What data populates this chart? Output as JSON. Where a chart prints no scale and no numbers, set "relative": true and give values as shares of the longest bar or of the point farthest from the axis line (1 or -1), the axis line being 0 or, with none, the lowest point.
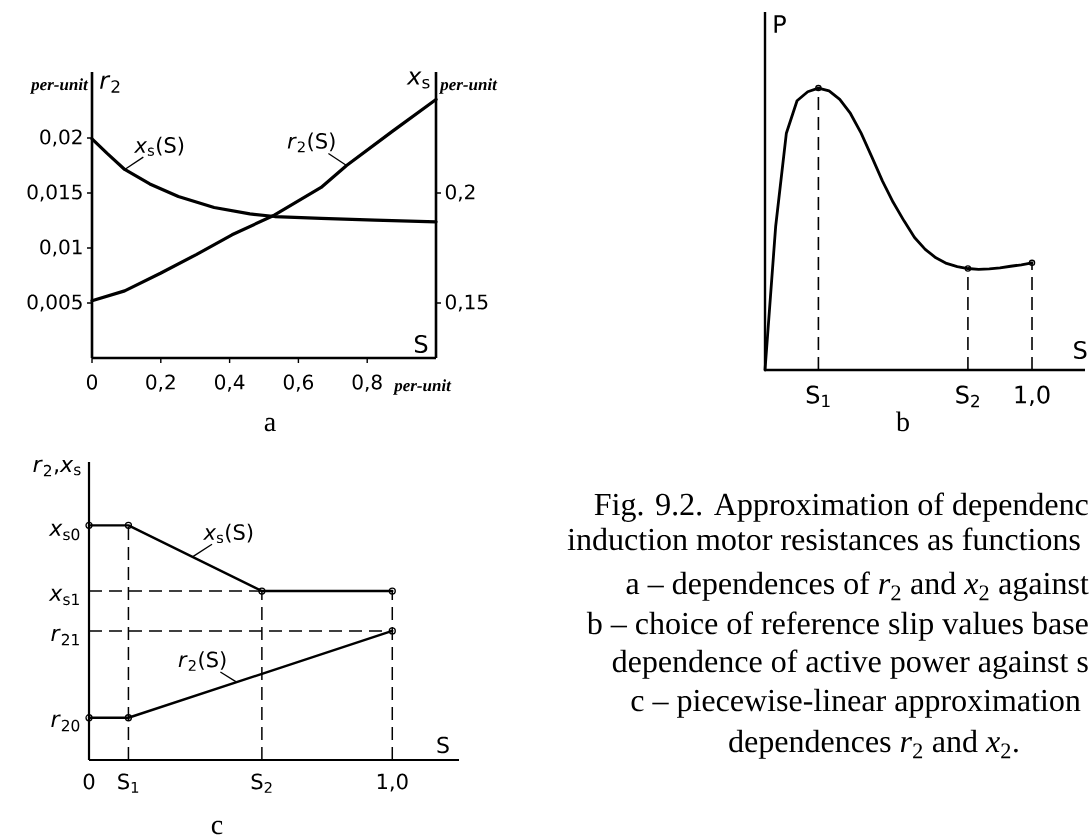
{
  "chart_data": [
    {
      "type": "line",
      "title": "a",
      "xlabel": "S",
      "ylabel": "*r*$_{2}$",
      "y2label": "*x*$_{s}$",
      "annotations": [
        "per-unit",
        "per-unit",
        "per-unit"
      ],
      "xlim": [
        0,
        1
      ],
      "xticks": [
        0,
        {
          "value": 0.2,
          "label": "0,2"
        },
        {
          "value": 0.4,
          "label": "0,4"
        },
        {
          "value": 0.6,
          "label": "0,6"
        },
        {
          "value": 0.8,
          "label": "0,8"
        }
      ],
      "ylim": [
        0,
        0.026
      ],
      "yticks": [
        {
          "value": 0.005,
          "label": "0,005"
        },
        {
          "value": 0.01,
          "label": "0,01"
        },
        {
          "value": 0.015,
          "label": "0,015"
        },
        {
          "value": 0.02,
          "label": "0,02"
        }
      ],
      "y2lim": [
        0.125,
        0.255
      ],
      "y2ticks": [
        {
          "value": 0.15,
          "label": "0,15"
        },
        {
          "value": 0.2,
          "label": "0,2"
        }
      ],
      "series": [
        {
          "name": "*x*$_{s}$(S)",
          "color": "#000000",
          "axis": "y2",
          "x": [
            0,
            0.044,
            0.095,
            0.168,
            0.251,
            0.355,
            0.459,
            0.531,
            0.666,
            0.822,
            1.0
          ],
          "values": [
            0.2246,
            0.218,
            0.2107,
            0.2041,
            0.1984,
            0.1934,
            0.1905,
            0.1893,
            0.1885,
            0.1877,
            0.1869
          ]
        },
        {
          "name": "*r*$_{2}$(S)",
          "color": "#000000",
          "x": [
            0,
            0.095,
            0.199,
            0.303,
            0.407,
            0.531,
            0.666,
            0.74,
            0.873,
            1.0
          ],
          "values": [
            0.0052,
            0.0061,
            0.0077,
            0.0094,
            0.0112,
            0.013,
            0.0155,
            0.0175,
            0.0206,
            0.0235
          ]
        }
      ]
    },
    {
      "type": "line",
      "title": "b",
      "xlabel": "S",
      "ylabel": "P",
      "relative": true,
      "categories": [
        null,
        null,
        null,
        null,
        null,
        "S$_{1}$",
        null,
        null,
        null,
        null,
        null,
        null,
        null,
        null,
        null,
        null,
        null,
        null,
        null,
        "S$_{2}$",
        null,
        null,
        null,
        null,
        null,
        "1,0"
      ],
      "series": [
        {
          "color": "#000000",
          "values": [
            0,
            0.51,
            0.84,
            0.955,
            0.987,
            1,
            0.99,
            0.96,
            0.91,
            0.84,
            0.756,
            0.67,
            0.595,
            0.53,
            0.47,
            0.428,
            0.398,
            0.378,
            0.367,
            0.36,
            0.357,
            0.359,
            0.362,
            0.368,
            0.373,
            0.38
          ]
        },
        {
          "type": "lollipop",
          "color": "#000000",
          "line_style": "dashed",
          "values": [
            null,
            null,
            null,
            null,
            null,
            1,
            null,
            null,
            null,
            null,
            null,
            null,
            null,
            null,
            null,
            null,
            null,
            null,
            null,
            0.36,
            null,
            null,
            null,
            null,
            null,
            0.38
          ]
        }
      ]
    },
    {
      "type": "line",
      "title": "c",
      "xlabel": "S",
      "ylabel": "*r*$_{2}$,*x*$_{s}$",
      "relative": true,
      "marker": "circle",
      "xlim": [
        0,
        1.22
      ],
      "xticks": [
        0,
        {
          "value": 1,
          "label": "1,0"
        }
      ],
      "ref_lines": [
        {
          "axis": "x",
          "value": 0.13,
          "label": "S$_{1}$",
          "line_style": "dashed"
        },
        {
          "axis": "x",
          "value": 0.57,
          "label": "S$_{2}$",
          "line_style": "dashed"
        },
        {
          "axis": "x",
          "value": 1,
          "line_style": "dashed"
        },
        {
          "axis": "y",
          "value": 0.72,
          "line_style": "dashed"
        },
        {
          "axis": "y",
          "value": 0.55,
          "line_style": "dashed"
        }
      ],
      "annotations": [
        "*x*$_{s0}$",
        "*x*$_{s1}$",
        "*r*$_{21}$",
        "*r*$_{20}$"
      ],
      "series": [
        {
          "name": "*x*$_{s}$(S)",
          "color": "#000000",
          "x": [
            0,
            0.13,
            0.57,
            1
          ],
          "values": [
            1,
            1,
            0.72,
            0.72
          ]
        },
        {
          "name": "*r*$_{2}$(S)",
          "color": "#000000",
          "x": [
            0,
            0.13,
            1
          ],
          "values": [
            0.18,
            0.18,
            0.55
          ]
        }
      ]
    },
    {
      "type": "other",
      "annotations": [
        "Fig. 9.2. Approximation of dependenc",
        "induction motor resistances as functions",
        "a – dependences of *r*$_{2}$ and *x*$_{2}$ against",
        "b – choice of reference slip values base",
        "dependence of active power against s",
        "c – piecewise-linear approximation",
        "dependences *r*$_{2}$ and *x*$_{2}$."
      ]
    }
  ]
}
